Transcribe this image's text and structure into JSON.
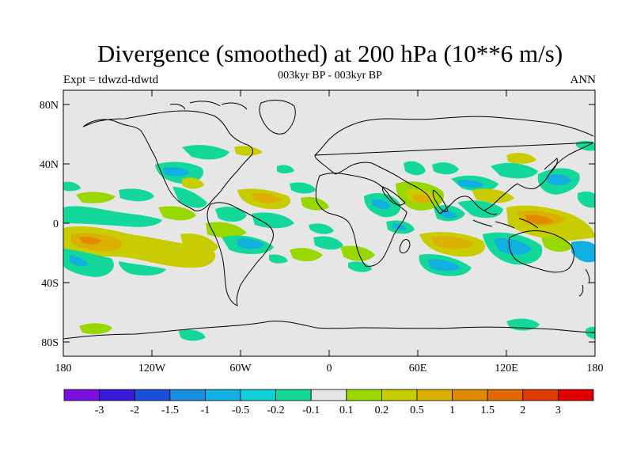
{
  "title": "Divergence (smoothed) at 200 hPa (10**6 m/s)",
  "subtitle": "003kyr BP - 003kyr BP",
  "left_label": "Expt = tdwzd-tdwtd",
  "right_label": "ANN",
  "lat_ticks": [
    "80N",
    "40N",
    "0",
    "40S",
    "80S"
  ],
  "lon_ticks": [
    "180",
    "120W",
    "60W",
    "0",
    "60E",
    "120E",
    "180"
  ],
  "colorbar": {
    "colors": [
      "#7b10e0",
      "#3a1ad8",
      "#1a50d8",
      "#1a8ce0",
      "#12b0e0",
      "#10cfd8",
      "#14d89a",
      "#e6e6e6",
      "#98d800",
      "#c8cc00",
      "#dcb000",
      "#e08a00",
      "#e06a00",
      "#e03c00",
      "#e00000"
    ],
    "labels": [
      "-3",
      "-2",
      "-1.5",
      "-1",
      "-0.5",
      "-0.2",
      "-0.1",
      "0.1",
      "0.2",
      "0.5",
      "1",
      "1.5",
      "2",
      "3"
    ]
  },
  "colors": {
    "background": "#e6e6e6",
    "land_outline": "#000000"
  }
}
